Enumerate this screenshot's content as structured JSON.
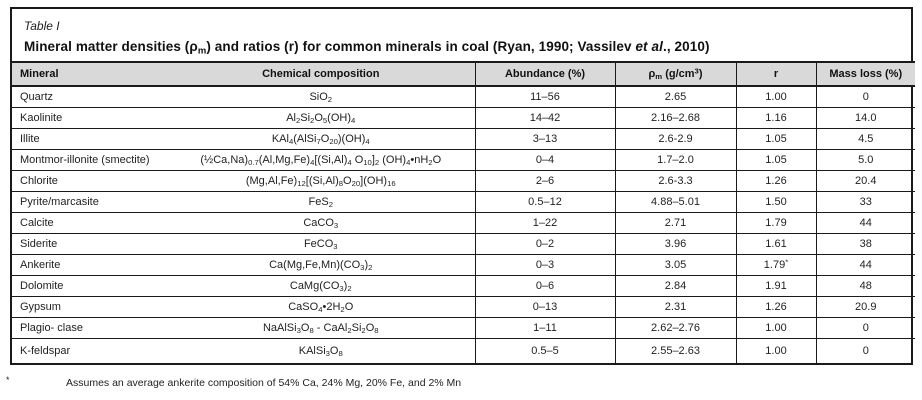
{
  "title": {
    "label": "Table I",
    "heading": "Mineral matter densities (ρ_m_) and ratios (r) for common minerals in coal (Ryan, 1990; Vassilev *et al*., 2010)"
  },
  "table": {
    "columns": [
      "Mineral",
      "Chemical composition",
      "Abundance (%)",
      "ρ_m_ (g/cm^3^)",
      "r",
      "Mass loss (%)"
    ],
    "rows": [
      {
        "mineral": "Quartz",
        "formula": "SiO_2_",
        "abundance": "11–56",
        "density": "2.65",
        "r": "1.00",
        "mass_loss": "0"
      },
      {
        "mineral": "Kaolinite",
        "formula": "Al_2_Si_2_O_5_(OH)_4_",
        "abundance": "14–42",
        "density": "2.16–2.68",
        "r": "1.16",
        "mass_loss": "14.0"
      },
      {
        "mineral": "Illite",
        "formula": "KAl_4_(AlSi_7_O_20_)(OH)_4_",
        "abundance": "3–13",
        "density": "2.6-2.9",
        "r": "1.05",
        "mass_loss": "4.5"
      },
      {
        "mineral": "Montmor-illonite (smectite)",
        "formula": "(½Ca,Na)_0.7_(Al,Mg,Fe)_4_[(Si,Al)_4_ O_10_]_2_ (OH)_4_•nH_2_O",
        "abundance": "0–4",
        "density": "1.7–2.0",
        "r": "1.05",
        "mass_loss": "5.0"
      },
      {
        "mineral": "Chlorite",
        "formula": "(Mg,Al,Fe)_12_[(Si,Al)_8_O_20_](OH)_16_",
        "abundance": "2–6",
        "density": "2.6-3.3",
        "r": "1.26",
        "mass_loss": "20.4"
      },
      {
        "mineral": "Pyrite/marcasite",
        "formula": "FeS_2_",
        "abundance": "0.5–12",
        "density": "4.88–5.01",
        "r": "1.50",
        "mass_loss": "33"
      },
      {
        "mineral": "Calcite",
        "formula": "CaCO_3_",
        "abundance": "1–22",
        "density": "2.71",
        "r": "1.79",
        "mass_loss": "44"
      },
      {
        "mineral": "Siderite",
        "formula": "FeCO_3_",
        "abundance": "0–2",
        "density": "3.96",
        "r": "1.61",
        "mass_loss": "38"
      },
      {
        "mineral": "Ankerite",
        "formula": "Ca(Mg,Fe,Mn)(CO_3_)_2_",
        "abundance": "0–3",
        "density": "3.05",
        "r": "1.79^*^",
        "mass_loss": "44"
      },
      {
        "mineral": "Dolomite",
        "formula": "CaMg(CO_3_)_2_",
        "abundance": "0–6",
        "density": "2.84",
        "r": "1.91",
        "mass_loss": "48"
      },
      {
        "mineral": "Gypsum",
        "formula": "CaSO_4_•2H_2_O",
        "abundance": "0–13",
        "density": "2.31",
        "r": "1.26",
        "mass_loss": "20.9"
      },
      {
        "mineral": "Plagio- clase",
        "formula": "NaAlSi_3_O_8_ - CaAl_2_Si_2_O_8_",
        "abundance": "1–11",
        "density": "2.62–2.76",
        "r": "1.00",
        "mass_loss": "0"
      },
      {
        "mineral": "K-feldspar",
        "formula": "KAlSi_3_O_8_",
        "abundance": "0.5–5",
        "density": "2.55–2.63",
        "r": "1.00",
        "mass_loss": "0"
      }
    ]
  },
  "footnote": {
    "marker": "*",
    "text": "Assumes an average ankerite composition of 54% Ca, 24% Mg, 20% Fe, and 2% Mn"
  },
  "colors": {
    "header_bg": "#d9d9d9",
    "border": "#1a1a1a",
    "text": "#1f1f1f"
  }
}
